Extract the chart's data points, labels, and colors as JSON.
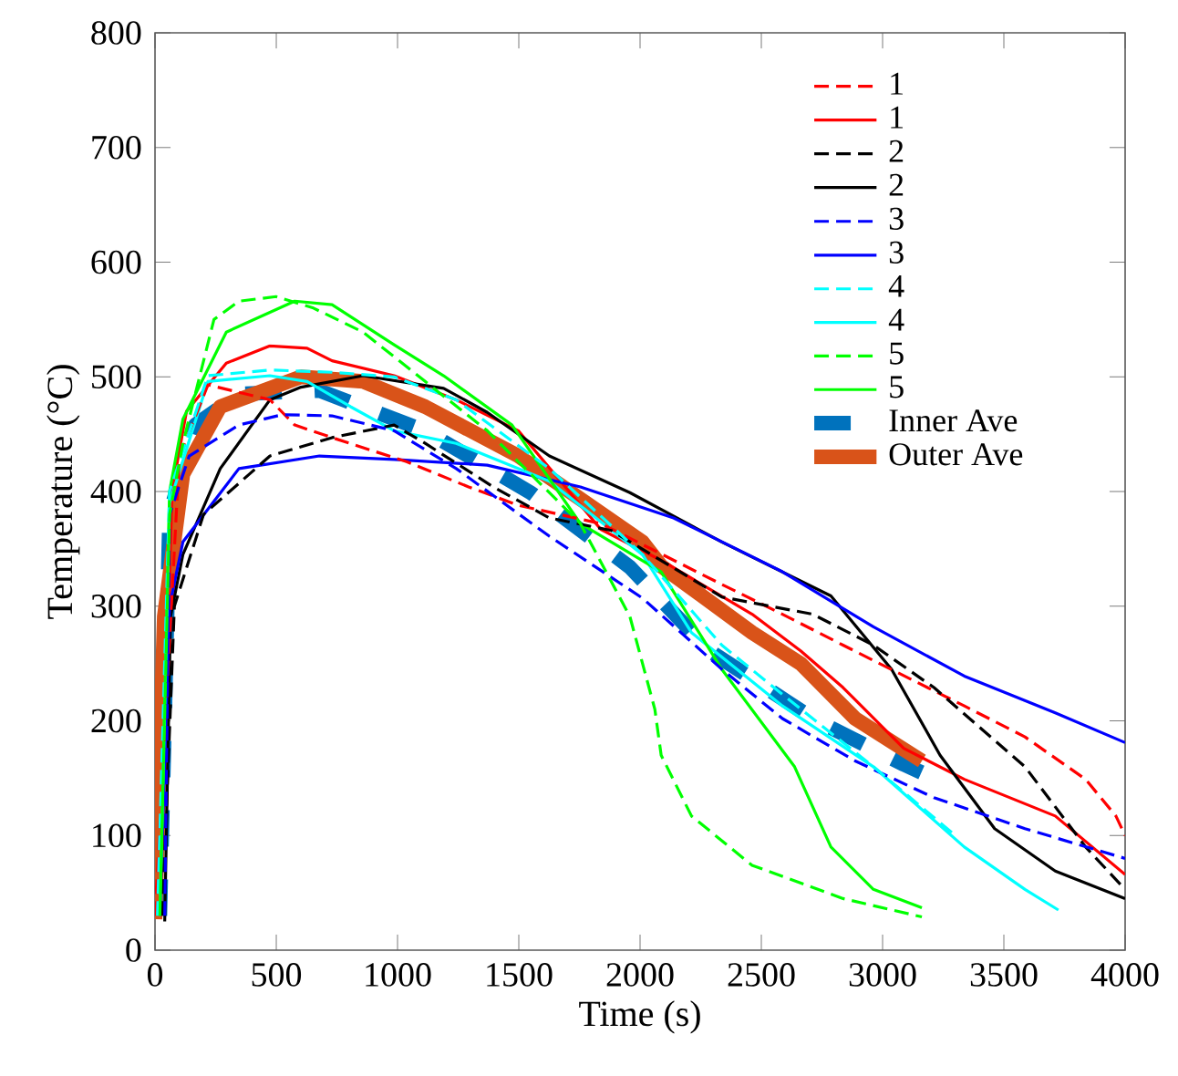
{
  "chart_data": {
    "type": "line",
    "xlabel": "Time (s)",
    "ylabel": "Temperature (°C)",
    "xlim": [
      0,
      4000
    ],
    "ylim": [
      0,
      800
    ],
    "xticks": [
      0,
      500,
      1000,
      1500,
      2000,
      2500,
      3000,
      3500,
      4000
    ],
    "yticks": [
      0,
      100,
      200,
      300,
      400,
      500,
      600,
      700,
      800
    ],
    "grid": false,
    "legend": "top right",
    "marker": "none",
    "series": [
      {
        "name": "1",
        "color": "#ff0000",
        "line_style": "dashed",
        "x": [
          0,
          100,
          218,
          474,
          576,
          730,
          1037,
          1293,
          1498,
          1838,
          2337,
          2587,
          2837,
          2987,
          3337,
          3587,
          3837,
          3962,
          4000
        ],
        "values": [
          30,
          430,
          493,
          480,
          458,
          447,
          426,
          404,
          388,
          372,
          319,
          293,
          266,
          250,
          213,
          186,
          149,
          117,
          100
        ]
      },
      {
        "name": "1",
        "color": "#ff0000",
        "line_style": "solid",
        "x": [
          20,
          70,
          130,
          294,
          474,
          627,
          730,
          986,
          1242,
          1498,
          1838,
          2087,
          2462,
          2662,
          2837,
          3087,
          3337,
          3712,
          4000
        ],
        "values": [
          30,
          400,
          470,
          512,
          527,
          525,
          514,
          501,
          480,
          453,
          367,
          340,
          293,
          261,
          229,
          176,
          149,
          117,
          66
        ]
      },
      {
        "name": "2",
        "color": "#000000",
        "line_style": "dashed",
        "x": [
          30,
          80,
          200,
          474,
          730,
          986,
          1114,
          1395,
          1626,
          1882,
          2337,
          2712,
          2962,
          3212,
          3587,
          3837,
          4000
        ],
        "values": [
          30,
          300,
          380,
          431,
          447,
          458,
          442,
          404,
          377,
          366,
          308,
          293,
          266,
          229,
          160,
          90,
          53
        ]
      },
      {
        "name": "2",
        "color": "#000000",
        "line_style": "solid",
        "x": [
          40,
          64,
          115,
          269,
          474,
          602,
          858,
          1190,
          1370,
          1626,
          1958,
          2337,
          2787,
          3037,
          3237,
          3462,
          3712,
          4000
        ],
        "values": [
          25,
          291,
          345,
          420,
          480,
          491,
          501,
          490,
          469,
          431,
          399,
          356,
          309,
          245,
          170,
          106,
          69,
          45
        ]
      },
      {
        "name": "3",
        "color": "#0000ff",
        "line_style": "dashed",
        "x": [
          40,
          60,
          141,
          346,
          525,
          730,
          986,
          1242,
          1626,
          2010,
          2337,
          2587,
          2887,
          3212,
          3587,
          4000
        ],
        "values": [
          30,
          380,
          431,
          458,
          467,
          466,
          453,
          420,
          361,
          307,
          245,
          202,
          165,
          133,
          106,
          80
        ]
      },
      {
        "name": "3",
        "color": "#0000ff",
        "line_style": "solid",
        "x": [
          20,
          60,
          115,
          346,
          678,
          986,
          1370,
          1754,
          2138,
          2587,
          2962,
          3337,
          3712,
          4000
        ],
        "values": [
          30,
          300,
          356,
          420,
          431,
          428,
          423,
          404,
          377,
          330,
          282,
          239,
          207,
          181
        ]
      },
      {
        "name": "4",
        "color": "#00ffff",
        "line_style": "dashed",
        "x": [
          10,
          60,
          218,
          474,
          730,
          986,
          1242,
          1626,
          2010,
          2337,
          2587,
          2962,
          3300
        ],
        "values": [
          30,
          400,
          501,
          506,
          504,
          500,
          480,
          420,
          345,
          266,
          223,
          160,
          100
        ]
      },
      {
        "name": "4",
        "color": "#00ffff",
        "line_style": "solid",
        "x": [
          20,
          60,
          218,
          474,
          627,
          806,
          986,
          1242,
          1626,
          2010,
          2212,
          2587,
          2962,
          3337,
          3587,
          3725
        ],
        "values": [
          30,
          390,
          496,
          501,
          496,
          474,
          453,
          442,
          409,
          345,
          277,
          213,
          160,
          90,
          53,
          35
        ]
      },
      {
        "name": "5",
        "color": "#00ff00",
        "line_style": "dashed",
        "x": [
          20,
          60,
          115,
          243,
          346,
          499,
          653,
          858,
          1114,
          1370,
          1754,
          1958,
          2061,
          2087,
          2212,
          2462,
          2837,
          3162
        ],
        "values": [
          30,
          380,
          442,
          550,
          566,
          570,
          560,
          539,
          496,
          453,
          372,
          291,
          210,
          170,
          117,
          74,
          45,
          29
        ]
      },
      {
        "name": "5",
        "color": "#00ff00",
        "line_style": "solid",
        "x": [
          20,
          60,
          115,
          294,
          576,
          730,
          986,
          1190,
          1472,
          1754,
          2087,
          2337,
          2637,
          2787,
          2962,
          3162
        ],
        "values": [
          30,
          400,
          463,
          539,
          566,
          563,
          528,
          501,
          458,
          372,
          330,
          245,
          160,
          90,
          53,
          37
        ]
      },
      {
        "name": "Inner Ave",
        "color": "#0072bd",
        "line_style": "dashed",
        "x": [
          20,
          60,
          166,
          346,
          678,
          1114,
          1549,
          1958,
          2287,
          2712,
          3087,
          3160
        ],
        "values": [
          30,
          380,
          458,
          485,
          488,
          453,
          399,
          334,
          261,
          202,
          162,
          155
        ]
      },
      {
        "name": "Outer Ave",
        "color": "#d95319",
        "line_style": "solid",
        "x": [
          0,
          38,
          115,
          269,
          602,
          858,
          1114,
          1498,
          2010,
          2087,
          2462,
          2662,
          2887,
          3162
        ],
        "values": [
          27,
          291,
          415,
          474,
          500,
          496,
          474,
          431,
          356,
          335,
          277,
          250,
          202,
          165
        ]
      }
    ]
  }
}
